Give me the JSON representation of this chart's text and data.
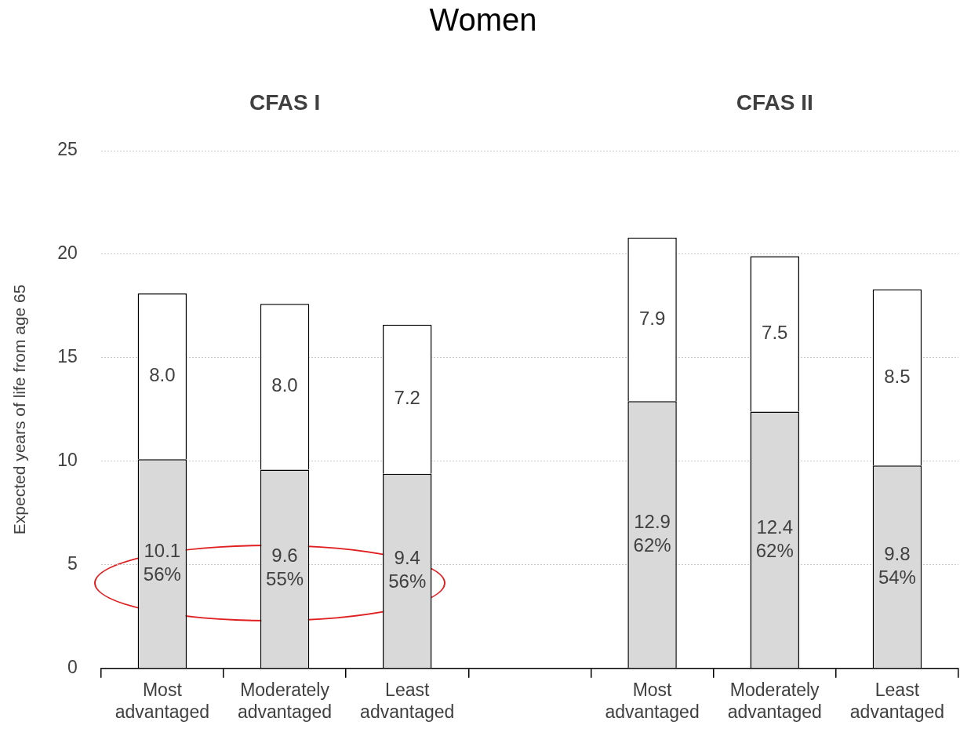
{
  "chart_data": {
    "type": "bar",
    "title": "Women",
    "ylabel": "Expected years of life from age 65",
    "categories": [
      "Most advantaged",
      "Moderately advantaged",
      "Least advantaged",
      null,
      "Most advantaged",
      "Moderately advantaged",
      "Least advantaged"
    ],
    "stacked": true,
    "series": [
      {
        "color": "#d9d9d9",
        "values": [
          10.1,
          9.6,
          9.4,
          null,
          12.9,
          12.4,
          9.8
        ],
        "value_labels": [
          "10.1\n56%",
          "9.6\n55%",
          "9.4\n56%",
          null,
          "12.9\n62%",
          "12.4\n62%",
          "9.8\n54%"
        ]
      },
      {
        "color": "#ffffff",
        "values": [
          8.0,
          8.0,
          7.2,
          null,
          7.9,
          7.5,
          8.5
        ],
        "value_labels": [
          "8.0",
          "8.0",
          "7.2",
          null,
          "7.9",
          "7.5",
          "8.5"
        ]
      }
    ],
    "annotations": [
      "CFAS I",
      "CFAS II"
    ],
    "ylim": [
      0,
      25
    ],
    "yticks": [
      0,
      5,
      10,
      15,
      20,
      25
    ],
    "grid": "y",
    "legend": false
  }
}
